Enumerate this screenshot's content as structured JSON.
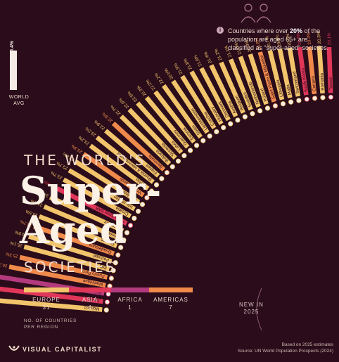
{
  "header": {
    "title_small_1": "THE WORLD'S",
    "title_big_1": "Super-",
    "title_big_2": "Aged",
    "title_small_2": "SOCIETIES"
  },
  "info": {
    "icon": "info-icon",
    "text_before": "Countries where over ",
    "text_bold": "20%",
    "text_after": " of the population are aged 65+ are classified as “super-aged” societies."
  },
  "world": {
    "label": "WORLD AVG",
    "value": "10.4%"
  },
  "legend": {
    "items": [
      {
        "name": "EUROPE",
        "count": "31",
        "color": "#f2c46b"
      },
      {
        "name": "ASIA",
        "count": "4",
        "color": "#e0365a"
      },
      {
        "name": "AFRICA",
        "count": "1",
        "color": "#b43a7e"
      },
      {
        "name": "AMERICAS",
        "count": "7",
        "color": "#f08a4b"
      }
    ],
    "note_1": "NO. OF COUNTRIES",
    "note_2": "PER REGION"
  },
  "new_badge": {
    "line1": "NEW IN",
    "line2": "2025"
  },
  "brand": {
    "name": "VISUAL CAPITALIST",
    "icon": "vc-logo-icon"
  },
  "source": {
    "line1": "Based on 2025 estimates",
    "line2": "Source: UN World Population Prospects (2024)"
  },
  "chart_data": {
    "type": "bar",
    "title": "The World's Super-Aged Societies",
    "categories": [
      "Monaco",
      "Japan",
      "Saint Helena",
      "Martinique",
      "Puerto Rico",
      "Italy",
      "Portugal",
      "Guadeloupe",
      "Greece",
      "Finland",
      "Germany",
      "Hong Kong SAR",
      "Croatia",
      "Isle of Man",
      "San Marino",
      "Virgin Islands",
      "Serbia",
      "Bosnia & Herzegovina",
      "France",
      "Bermuda",
      "Bulgaria",
      "Slovenia",
      "Latvia",
      "Guernsey",
      "Estonia",
      "Spain",
      "Liechtenstein",
      "Czechia",
      "Hungary",
      "Denmark",
      "Austria",
      "Belgium",
      "Sweden",
      "Netherlands",
      "Poland",
      "Saint Pierre & Miquelon",
      "Lithuania",
      "Malta",
      "Switzerland",
      "South Korea",
      "Canada",
      "Romania",
      "Taiwan"
    ],
    "values": [
      36.0,
      30.0,
      27.8,
      26.3,
      25.3,
      25.1,
      24.9,
      24.7,
      24.5,
      24.4,
      24.2,
      23.9,
      23.7,
      23.7,
      23.6,
      23.3,
      23.2,
      23.2,
      22.9,
      22.8,
      22.7,
      22.6,
      22.5,
      22.3,
      22.2,
      22.2,
      22.0,
      21.9,
      21.8,
      21.6,
      21.4,
      21.2,
      21.1,
      21.0,
      20.9,
      20.8,
      20.7,
      20.6,
      20.5,
      20.4,
      20.3,
      20.3,
      20.1
    ],
    "value_labels": [
      "36.0%",
      "30.0%",
      "27.8%",
      "26.3%",
      "25.3%",
      "25.1%",
      "24.9%",
      "24.7%",
      "24.5%",
      "24.4%",
      "24.2%",
      "23.9%",
      "23.7%",
      "23.7%",
      "23.6%",
      "23.3%",
      "23.2%",
      "23.2%",
      "22.9%",
      "22.8%",
      "22.7%",
      "22.6%",
      "22.5%",
      "22.3%",
      "22.2%",
      "22.2%",
      "22.0%",
      "21.9%",
      "21.8%",
      "21.6%",
      "21.4%",
      "21.2%",
      "21.1%",
      "21.0%",
      "20.9%",
      "20.8%",
      "20.7%",
      "20.6%",
      "20.5%",
      "20.4%",
      "20.3%",
      "20.3%",
      "20.1%"
    ],
    "regions": [
      "Europe",
      "Asia",
      "Africa",
      "Americas",
      "Americas",
      "Europe",
      "Europe",
      "Americas",
      "Europe",
      "Europe",
      "Europe",
      "Asia",
      "Europe",
      "Europe",
      "Europe",
      "Americas",
      "Europe",
      "Europe",
      "Europe",
      "Americas",
      "Europe",
      "Europe",
      "Europe",
      "Europe",
      "Europe",
      "Europe",
      "Europe",
      "Europe",
      "Europe",
      "Europe",
      "Europe",
      "Europe",
      "Europe",
      "Europe",
      "Europe",
      "Americas",
      "Europe",
      "Europe",
      "Europe",
      "Asia",
      "Americas",
      "Europe",
      "Asia"
    ],
    "new_in_2025": [
      "South Korea",
      "Canada",
      "Romania",
      "Taiwan"
    ],
    "colors": {
      "Europe": "#f2c46b",
      "Asia": "#e0365a",
      "Africa": "#b43a7e",
      "Americas": "#f08a4b"
    }
  }
}
